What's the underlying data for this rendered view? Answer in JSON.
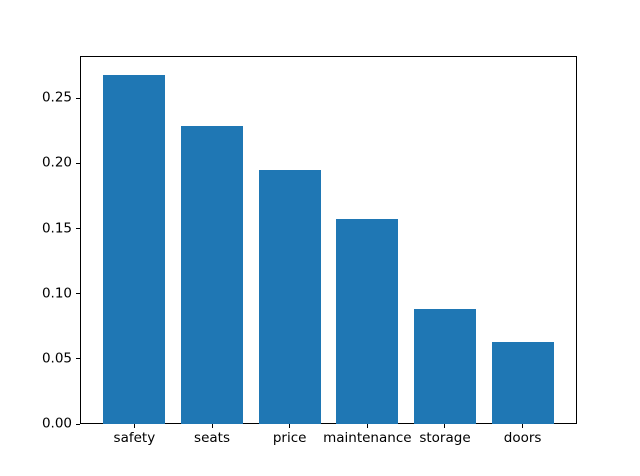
{
  "chart_data": {
    "type": "bar",
    "categories": [
      "safety",
      "seats",
      "price",
      "maintenance",
      "storage",
      "doors"
    ],
    "values": [
      0.268,
      0.229,
      0.195,
      0.157,
      0.088,
      0.063
    ],
    "title": "",
    "xlabel": "",
    "ylabel": "",
    "ylim": [
      0,
      0.2825
    ],
    "yticks": [
      "0.00",
      "0.05",
      "0.10",
      "0.15",
      "0.20",
      "0.25"
    ],
    "ytick_values": [
      0.0,
      0.05,
      0.1,
      0.15,
      0.2,
      0.25
    ],
    "bar_color": "#1f77b4",
    "axis_color": "#000000",
    "background_color": "#ffffff",
    "bar_width_fraction": 0.8,
    "x_margin_units": 0.7,
    "grid": false,
    "legend": null
  }
}
